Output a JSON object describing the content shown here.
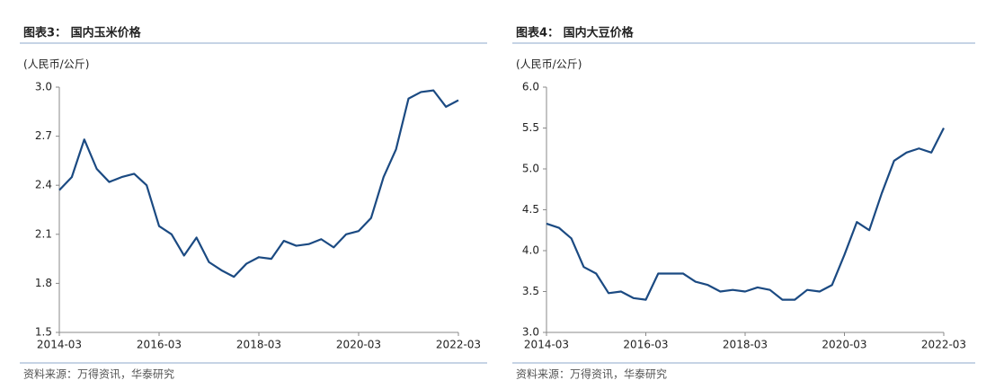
{
  "chart_data": [
    {
      "type": "line",
      "title": "图表3：  国内玉米价格",
      "y_label": "(人民币/公斤)",
      "source": "资料来源：万得资讯，华泰研究",
      "x": [
        "2014-03",
        "2014-06",
        "2014-09",
        "2014-12",
        "2015-03",
        "2015-06",
        "2015-09",
        "2015-12",
        "2016-03",
        "2016-06",
        "2016-09",
        "2016-12",
        "2017-03",
        "2017-06",
        "2017-09",
        "2017-12",
        "2018-03",
        "2018-06",
        "2018-09",
        "2018-12",
        "2019-03",
        "2019-06",
        "2019-09",
        "2019-12",
        "2020-03",
        "2020-06",
        "2020-09",
        "2020-12",
        "2021-03",
        "2021-06",
        "2021-09",
        "2021-12",
        "2022-03"
      ],
      "series": [
        {
          "color": "#1b4a82",
          "values": [
            2.37,
            2.45,
            2.68,
            2.5,
            2.42,
            2.45,
            2.47,
            2.4,
            2.15,
            2.1,
            1.97,
            2.08,
            1.93,
            1.88,
            1.84,
            1.92,
            1.96,
            1.95,
            2.06,
            2.03,
            2.04,
            2.07,
            2.02,
            2.1,
            2.12,
            2.2,
            2.45,
            2.62,
            2.93,
            2.97,
            2.98,
            2.88,
            2.92
          ]
        }
      ],
      "xlim": [
        "2014-03",
        "2022-03"
      ],
      "xticks": [
        "2014-03",
        "2016-03",
        "2018-03",
        "2020-03",
        "2022-03"
      ],
      "ylim": [
        1.5,
        3
      ],
      "yticks": [
        {
          "value": 3,
          "label": "3.0"
        },
        2.7,
        2.4,
        2.1,
        1.8,
        1.5
      ],
      "grid": false
    },
    {
      "type": "line",
      "title": "图表4：  国内大豆价格",
      "y_label": "(人民币/公斤)",
      "source": "资料来源：万得资讯，华泰研究",
      "x": [
        "2014-03",
        "2014-06",
        "2014-09",
        "2014-12",
        "2015-03",
        "2015-06",
        "2015-09",
        "2015-12",
        "2016-03",
        "2016-06",
        "2016-09",
        "2016-12",
        "2017-03",
        "2017-06",
        "2017-09",
        "2017-12",
        "2018-03",
        "2018-06",
        "2018-09",
        "2018-12",
        "2019-03",
        "2019-06",
        "2019-09",
        "2019-12",
        "2020-03",
        "2020-06",
        "2020-09",
        "2020-12",
        "2021-03",
        "2021-06",
        "2021-09",
        "2021-12",
        "2022-03"
      ],
      "series": [
        {
          "color": "#1b4a82",
          "values": [
            4.33,
            4.28,
            4.15,
            3.8,
            3.72,
            3.48,
            3.5,
            3.42,
            3.4,
            3.72,
            3.72,
            3.72,
            3.62,
            3.58,
            3.5,
            3.52,
            3.5,
            3.55,
            3.52,
            3.4,
            3.4,
            3.52,
            3.5,
            3.58,
            3.95,
            4.35,
            4.25,
            4.7,
            5.1,
            5.2,
            5.25,
            5.2,
            5.5
          ]
        }
      ],
      "xlim": [
        "2014-03",
        "2022-03"
      ],
      "xticks": [
        "2014-03",
        "2016-03",
        "2018-03",
        "2020-03",
        "2022-03"
      ],
      "ylim": [
        3,
        6
      ],
      "yticks": [
        {
          "value": 6,
          "label": "6.0"
        },
        5.5,
        {
          "value": 5,
          "label": "5.0"
        },
        4.5,
        {
          "value": 4,
          "label": "4.0"
        },
        3.5,
        {
          "value": 3,
          "label": "3.0"
        }
      ],
      "grid": false
    }
  ]
}
